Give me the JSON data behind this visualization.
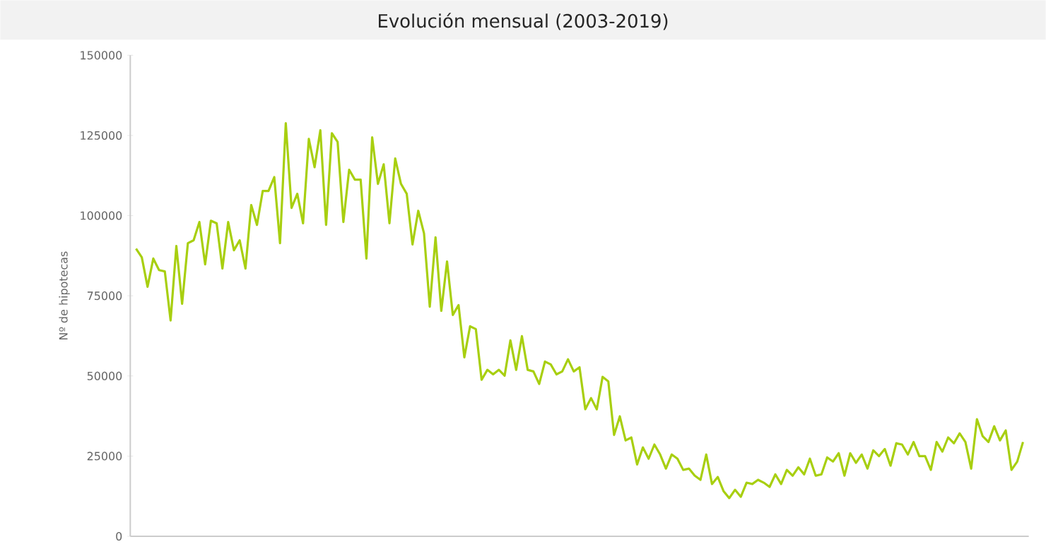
{
  "chart_data": {
    "type": "line",
    "title": "Evolución mensual (2003-2019)",
    "ylabel": "Nº de hipotecas",
    "ylim": [
      0,
      150000
    ],
    "yticks": [
      0,
      25000,
      50000,
      75000,
      100000,
      125000,
      150000
    ],
    "color": "#a8cf10",
    "marker": "none",
    "line_style": "solid",
    "categories": [
      null,
      null,
      null,
      null,
      null,
      null,
      null,
      null,
      null,
      null,
      null,
      null,
      null,
      null,
      null,
      null,
      null,
      null,
      null,
      null,
      null,
      null,
      null,
      null,
      null,
      null,
      null,
      null,
      null,
      null,
      null,
      null,
      null,
      null,
      null,
      null,
      null,
      null,
      null,
      null,
      null,
      null,
      null,
      null,
      null,
      null,
      null,
      null,
      null,
      null,
      null,
      null,
      null,
      null,
      null,
      null,
      null,
      null,
      null,
      null,
      null,
      null,
      null,
      null,
      null,
      null,
      null,
      null,
      null,
      null,
      null,
      null,
      null,
      null,
      null,
      null,
      null,
      null,
      null,
      null,
      null,
      null,
      null,
      null,
      null,
      null,
      null,
      null,
      null,
      null,
      null,
      null,
      null,
      null,
      null,
      null,
      null,
      null,
      null,
      null,
      null,
      null,
      null,
      null,
      null,
      null,
      null,
      null,
      null,
      null,
      null,
      null,
      null,
      null,
      null,
      null,
      null,
      null,
      null,
      null,
      null,
      null,
      null,
      null,
      null,
      null,
      null,
      null,
      null,
      null,
      null,
      null,
      null,
      null,
      null,
      null,
      null,
      null,
      null,
      null,
      null,
      null,
      null,
      null,
      null,
      null,
      null,
      null,
      null,
      null,
      null,
      null,
      null,
      null,
      null
    ],
    "values": [
      89700,
      87000,
      77800,
      86600,
      83000,
      82600,
      67300,
      90500,
      72500,
      91400,
      92300,
      98000,
      84800,
      98400,
      97600,
      83500,
      98000,
      89200,
      92300,
      83500,
      103300,
      97100,
      107700,
      107700,
      112000,
      91400,
      128800,
      102400,
      106800,
      97600,
      123900,
      115100,
      126600,
      97100,
      125700,
      123000,
      98000,
      114300,
      111200,
      111200,
      86600,
      124400,
      109900,
      116000,
      97600,
      117800,
      109900,
      106800,
      91000,
      101500,
      94500,
      71600,
      93200,
      70300,
      85700,
      69000,
      72100,
      55800,
      65500,
      64600,
      48800,
      51900,
      50500,
      51900,
      50100,
      61100,
      51900,
      62400,
      51900,
      51400,
      47500,
      54500,
      53600,
      50500,
      51400,
      55200,
      51400,
      52700,
      39600,
      43100,
      39600,
      49700,
      48300,
      31600,
      37400,
      29900,
      30800,
      22400,
      27700,
      24200,
      28600,
      25500,
      21100,
      25500,
      24200,
      20700,
      21100,
      18900,
      17600,
      25500,
      16300,
      18500,
      14100,
      11900,
      14500,
      12300,
      16700,
      16300,
      17600,
      16700,
      15400,
      19300,
      16300,
      20700,
      18900,
      21500,
      19300,
      24200,
      18900,
      19300,
      24600,
      23300,
      25900,
      18900,
      25900,
      22900,
      25500,
      21100,
      26800,
      25000,
      27200,
      22000,
      29000,
      28600,
      25500,
      29400,
      25000,
      25000,
      20700,
      29400,
      26400,
      30800,
      29000,
      32100,
      29400,
      21100,
      36500,
      31200,
      29400,
      34300,
      29900,
      33000,
      20700,
      23300,
      29400
    ]
  }
}
